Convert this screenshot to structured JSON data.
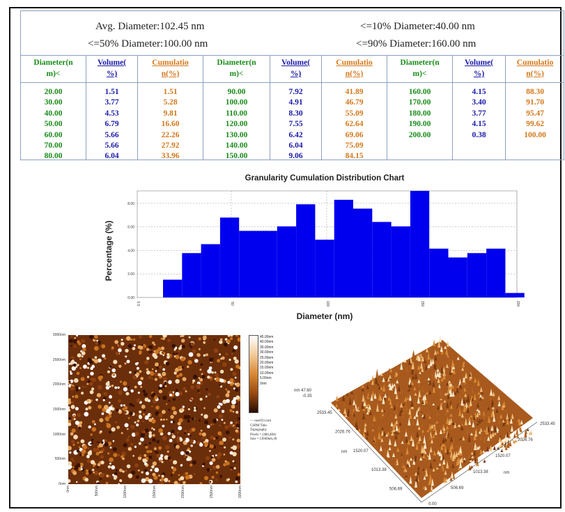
{
  "stats": {
    "avg": "Avg. Diameter:102.45 nm",
    "d10": "<=10% Diameter:40.00 nm",
    "d50": "<=50% Diameter:100.00 nm",
    "d90": "<=90% Diameter:160.00 nm"
  },
  "table": {
    "headers": [
      "Diameter(nm)<",
      "Volume(%)",
      "Cumulation(%)"
    ],
    "header_lines": [
      [
        "Diameter(n",
        "m)<"
      ],
      [
        "Volume(",
        "%)"
      ],
      [
        "Cumulatio",
        "n(%)"
      ]
    ],
    "groups": [
      {
        "diameter": [
          "20.00",
          "30.00",
          "40.00",
          "50.00",
          "60.00",
          "70.00",
          "80.00"
        ],
        "volume": [
          "1.51",
          "3.77",
          "4.53",
          "6.79",
          "5.66",
          "5.66",
          "6.04"
        ],
        "cumulation": [
          "1.51",
          "5.28",
          "9.81",
          "16.60",
          "22.26",
          "27.92",
          "33.96"
        ]
      },
      {
        "diameter": [
          "90.00",
          "100.00",
          "110.00",
          "120.00",
          "130.00",
          "140.00",
          "150.00"
        ],
        "volume": [
          "7.92",
          "4.91",
          "8.30",
          "7.55",
          "6.42",
          "6.04",
          "9.06"
        ],
        "cumulation": [
          "41.89",
          "46.79",
          "55.09",
          "62.64",
          "69.06",
          "75.09",
          "84.15"
        ]
      },
      {
        "diameter": [
          "160.00",
          "170.00",
          "180.00",
          "190.00",
          "200.00"
        ],
        "volume": [
          "4.15",
          "3.40",
          "3.77",
          "4.15",
          "0.38"
        ],
        "cumulation": [
          "88.30",
          "91.70",
          "95.47",
          "99.62",
          "100.00"
        ]
      }
    ]
  },
  "chart_data": {
    "type": "bar",
    "title": "Granularity Cumulation Distribution Chart",
    "xlabel": "Diameter (nm)",
    "ylabel": "Percentage (%)",
    "categories": [
      "20",
      "30",
      "40",
      "50",
      "60",
      "70",
      "80",
      "90",
      "100",
      "110",
      "120",
      "130",
      "140",
      "150",
      "160",
      "170",
      "180",
      "190",
      "200"
    ],
    "values": [
      1.51,
      3.77,
      4.53,
      6.79,
      5.66,
      5.66,
      6.04,
      7.92,
      4.91,
      8.3,
      7.55,
      6.42,
      6.04,
      9.06,
      4.15,
      3.4,
      3.77,
      4.15,
      0.38
    ],
    "ylim": [
      0,
      9.06
    ],
    "yticks": [
      "0.00",
      "2.00",
      "4.00",
      "6.00",
      "8.00"
    ],
    "xticks": [
      "0.0",
      "50",
      "100",
      "150",
      "200"
    ],
    "bar_color": "#0000ee",
    "grid": true
  },
  "afm": {
    "y_ticks": [
      "3000nm",
      "2500nm",
      "2000nm",
      "1500nm",
      "1000nm",
      "500nm",
      "0nm"
    ],
    "x_ticks": [
      "0nm",
      "500nm",
      "1000nm",
      "1500nm",
      "2000nm",
      "2500nm",
      "3000nm"
    ],
    "colorbar_ticks": [
      "45.00nm",
      "40.00nm",
      "35.00nm",
      "30.00nm",
      "25.00nm",
      "20.00nm",
      "15.00nm",
      "10.00nm",
      "5.00nm",
      "0nm"
    ],
    "meta": [
      "— nos033.csm",
      "CSPM Title",
      "Topography",
      "Pixels = (484,484)",
      "Size = (3040nm,30"
    ],
    "z_top": "nm 47.60",
    "z_bottom": "-0.35",
    "axis_left": [
      "2533.45",
      "2026.76",
      "1520.07",
      "1013.38",
      "506.69",
      "0.00"
    ],
    "axis_right": [
      "2533.45",
      "2026.76",
      "1520.07",
      "1013.38",
      "506.69",
      "0.00"
    ],
    "unit_left": "nm",
    "unit_right": "nm"
  }
}
